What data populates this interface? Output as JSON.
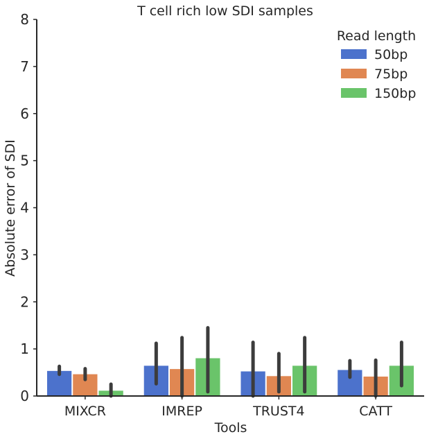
{
  "chart_data": {
    "type": "bar",
    "title": "T cell rich low SDI samples",
    "xlabel": "Tools",
    "ylabel": "Absolute error of SDI",
    "categories": [
      "MIXCR",
      "IMREP",
      "TRUST4",
      "CATT"
    ],
    "ylim": [
      0,
      8
    ],
    "yticks": [
      "0",
      "1",
      "2",
      "3",
      "4",
      "5",
      "6",
      "7",
      "8"
    ],
    "grid": false,
    "legend": {
      "title": "Read length",
      "placement": "top-right"
    },
    "series": [
      {
        "name": "50bp",
        "color": "#4c72cc",
        "values": [
          0.54,
          0.65,
          0.53,
          0.56
        ],
        "ci": [
          [
            0.46,
            0.63
          ],
          [
            0.26,
            1.12
          ],
          [
            0.0,
            1.14
          ],
          [
            0.4,
            0.75
          ]
        ]
      },
      {
        "name": "75bp",
        "color": "#e08752",
        "values": [
          0.47,
          0.58,
          0.43,
          0.42
        ],
        "ci": [
          [
            0.35,
            0.58
          ],
          [
            0.0,
            1.24
          ],
          [
            0.09,
            0.9
          ],
          [
            0.0,
            0.76
          ]
        ]
      },
      {
        "name": "150bp",
        "color": "#6ac46a",
        "values": [
          0.12,
          0.81,
          0.65,
          0.65
        ],
        "ci": [
          [
            0.0,
            0.25
          ],
          [
            0.09,
            1.45
          ],
          [
            0.09,
            1.24
          ],
          [
            0.22,
            1.14
          ]
        ]
      }
    ]
  }
}
